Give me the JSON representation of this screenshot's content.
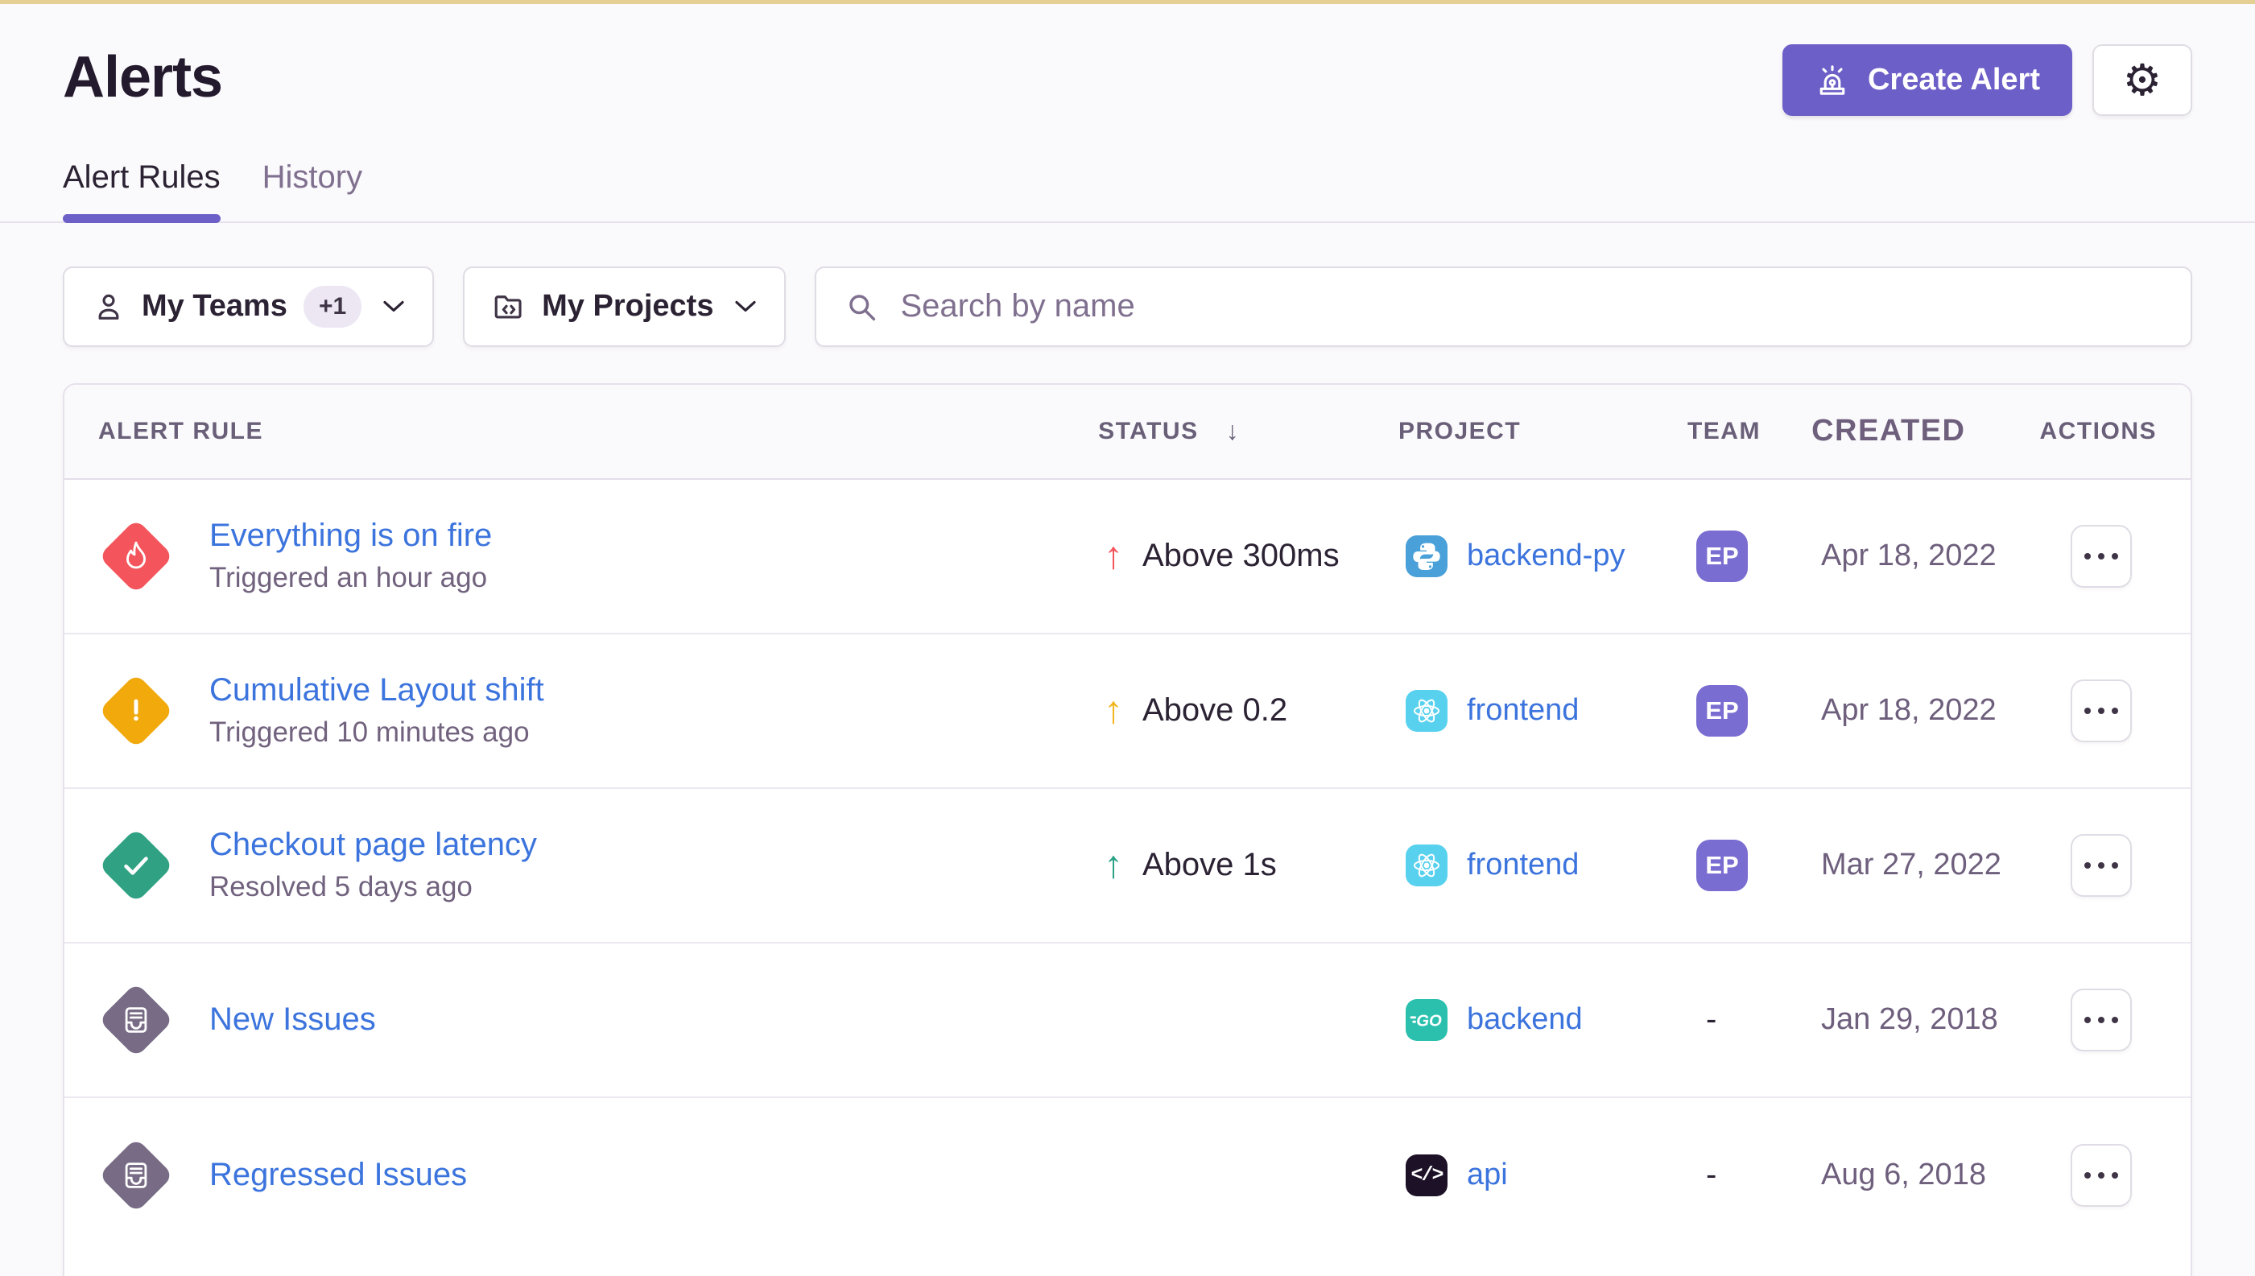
{
  "page": {
    "title": "Alerts"
  },
  "header": {
    "create_alert_label": "Create Alert"
  },
  "tabs": [
    {
      "label": "Alert Rules",
      "active": true
    },
    {
      "label": "History",
      "active": false
    }
  ],
  "filters": {
    "teams_label": "My Teams",
    "teams_extra_count": "+1",
    "projects_label": "My Projects",
    "search_placeholder": "Search by name"
  },
  "table": {
    "columns": {
      "rule": "ALERT RULE",
      "status": "STATUS",
      "project": "PROJECT",
      "team": "TEAM",
      "created": "CREATED",
      "actions": "ACTIONS"
    },
    "sorted_by": "STATUS",
    "sort_direction": "descending",
    "rows": [
      {
        "name": "Everything is on fire",
        "subtitle": "Triggered an hour ago",
        "type_icon": "fire",
        "type_color": "#F4555C",
        "status": "Above 300ms",
        "status_color": "#F4555C",
        "project": "backend-py",
        "platform": "python",
        "team": "EP",
        "created": "Apr 18, 2022"
      },
      {
        "name": "Cumulative Layout shift",
        "subtitle": "Triggered 10 minutes ago",
        "type_icon": "warning",
        "type_color": "#F1A90C",
        "status": "Above 0.2",
        "status_color": "#F1B51F",
        "project": "frontend",
        "platform": "react",
        "team": "EP",
        "created": "Apr 18, 2022"
      },
      {
        "name": "Checkout page latency",
        "subtitle": "Resolved 5 days ago",
        "type_icon": "check",
        "type_color": "#30A183",
        "status": "Above 1s",
        "status_color": "#2BA185",
        "project": "frontend",
        "platform": "react",
        "team": "EP",
        "created": "Mar 27, 2022"
      },
      {
        "name": "New Issues",
        "subtitle": "",
        "type_icon": "issues",
        "type_color": "#786B85",
        "status": "",
        "status_color": "",
        "project": "backend",
        "platform": "go",
        "team": "-",
        "created": "Jan 29, 2018"
      },
      {
        "name": "Regressed Issues",
        "subtitle": "",
        "type_icon": "issues",
        "type_color": "#786B85",
        "status": "",
        "status_color": "",
        "project": "api",
        "platform": "api",
        "team": "-",
        "created": "Aug 6, 2018"
      }
    ]
  },
  "colors": {
    "accent_purple": "#6C5FC7",
    "link_blue": "#3C74DD",
    "team_badge": "#7A6DD1",
    "critical_red": "#F4555C",
    "warning_yellow": "#F1A90C",
    "resolved_green": "#30A183",
    "issues_gray": "#786B85",
    "platform_python": "#4AA0D8",
    "platform_react": "#58D1EF",
    "platform_go": "#2BC0AE",
    "platform_api": "#1D1127",
    "top_strip": "#E6CF92",
    "border": "#E7E1EC"
  }
}
